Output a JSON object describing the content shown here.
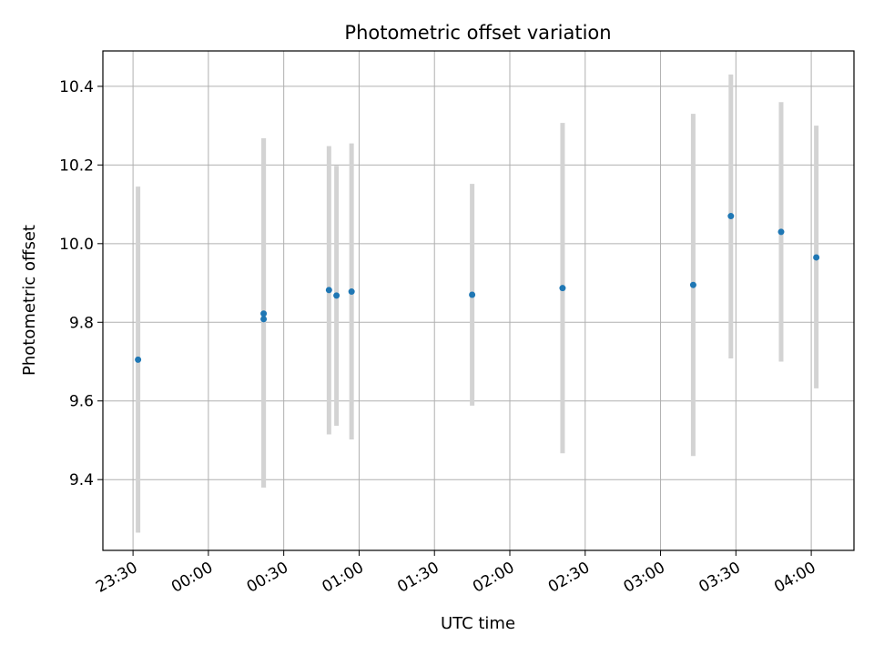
{
  "chart_data": {
    "type": "scatter",
    "title": "Photometric offset variation",
    "xlabel": "UTC time",
    "ylabel": "Photometric offset",
    "xlim": [
      "23:18",
      "04:17"
    ],
    "ylim": [
      9.22,
      10.49
    ],
    "x_ticks": [
      "23:30",
      "00:00",
      "00:30",
      "01:00",
      "01:30",
      "02:00",
      "02:30",
      "03:00",
      "03:30",
      "04:00"
    ],
    "y_ticks": [
      9.4,
      9.6,
      9.8,
      10.0,
      10.2,
      10.4
    ],
    "grid": true,
    "colors": {
      "marker": "#1f77b4",
      "error_bar": "#d3d3d3",
      "grid": "#b0b0b0",
      "axes": "#000000"
    },
    "points": [
      {
        "x": "23:32",
        "y": 9.705,
        "y_low": 9.265,
        "y_high": 10.145
      },
      {
        "x": "00:22",
        "y": 9.822,
        "y_low": 9.38,
        "y_high": 10.268
      },
      {
        "x": "00:22",
        "y": 9.808,
        "y_low": 9.38,
        "y_high": 10.268
      },
      {
        "x": "00:48",
        "y": 9.882,
        "y_low": 9.515,
        "y_high": 10.248
      },
      {
        "x": "00:51",
        "y": 9.868,
        "y_low": 9.537,
        "y_high": 10.198
      },
      {
        "x": "00:57",
        "y": 9.878,
        "y_low": 9.502,
        "y_high": 10.255
      },
      {
        "x": "01:45",
        "y": 9.87,
        "y_low": 9.588,
        "y_high": 10.152
      },
      {
        "x": "02:21",
        "y": 9.887,
        "y_low": 9.467,
        "y_high": 10.307
      },
      {
        "x": "03:13",
        "y": 9.895,
        "y_low": 9.46,
        "y_high": 10.33
      },
      {
        "x": "03:28",
        "y": 10.07,
        "y_low": 9.708,
        "y_high": 10.43
      },
      {
        "x": "03:48",
        "y": 10.03,
        "y_low": 9.7,
        "y_high": 10.36
      },
      {
        "x": "04:02",
        "y": 9.965,
        "y_low": 9.632,
        "y_high": 10.3
      }
    ]
  }
}
